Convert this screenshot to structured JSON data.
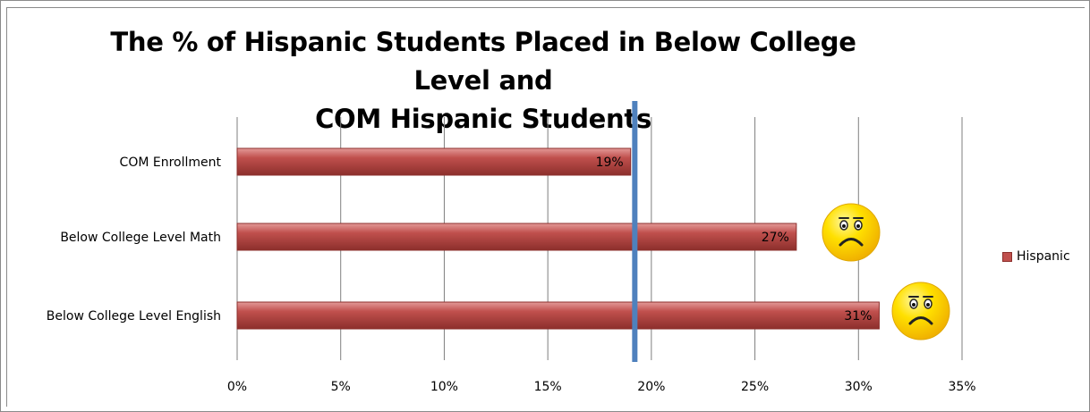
{
  "chart_data": {
    "type": "bar",
    "orientation": "horizontal",
    "title_line1": "The % of Hispanic Students Placed in Below College Level and",
    "title_line2": "COM Hispanic Students",
    "categories": [
      "COM Enrollment",
      "Below College Level Math",
      "Below College Level English"
    ],
    "series": [
      {
        "name": "Hispanic",
        "values": [
          19,
          27,
          31
        ],
        "labels": [
          "19%",
          "27%",
          "31%"
        ]
      }
    ],
    "xlim": [
      0,
      35
    ],
    "xticks": [
      0,
      5,
      10,
      15,
      20,
      25,
      30,
      35
    ],
    "xtick_labels": [
      "0%",
      "5%",
      "10%",
      "15%",
      "20%",
      "25%",
      "30%",
      "35%"
    ],
    "reference_line": {
      "value": 19.2,
      "color": "#4f81bd"
    },
    "sad_face_markers_on": [
      "Below College Level Math",
      "Below College Level English"
    ],
    "grid": true,
    "legend_position": "right",
    "colors": {
      "bar": "#c0504d",
      "bar_dark": "#8c2f2c",
      "reference": "#4f81bd",
      "face": "#ffd700"
    }
  }
}
